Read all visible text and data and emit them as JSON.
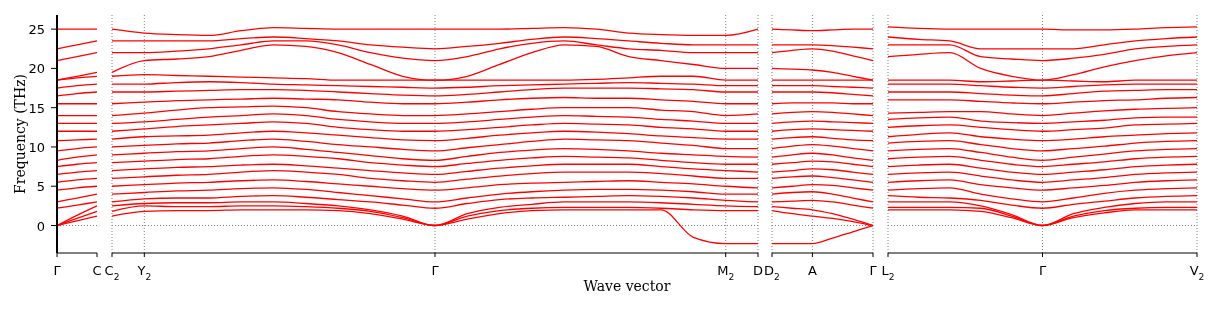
{
  "chart_data": [
    {
      "type": "line",
      "ylabel": "Frequency (THz)",
      "color": "#ff0000",
      "line_style": "solid",
      "categories": [
        "Γ",
        null,
        "C"
      ],
      "ylim": [
        -3.5,
        26.8
      ],
      "yticks": [
        0,
        5,
        10,
        15,
        20,
        25
      ],
      "ref_lines": [
        {
          "axis": "y",
          "value": 0,
          "color": "#808080",
          "line_style": "dotted"
        }
      ],
      "series": [
        {
          "values": [
            0,
            0.6,
            1.2
          ]
        },
        {
          "values": [
            0,
            0.9,
            1.8
          ]
        },
        {
          "values": [
            0,
            1.3,
            2.5
          ]
        },
        {
          "values": [
            2.2,
            2.6,
            3.0
          ]
        },
        {
          "values": [
            3.0,
            3.5,
            4.0
          ]
        },
        {
          "values": [
            4.5,
            4.8,
            5.0
          ]
        },
        {
          "values": [
            5.5,
            5.8,
            6.0
          ]
        },
        {
          "values": [
            6.5,
            6.8,
            7.0
          ]
        },
        {
          "values": [
            7.5,
            7.8,
            8.0
          ]
        },
        {
          "values": [
            8.3,
            8.7,
            9.0
          ]
        },
        {
          "values": [
            9.5,
            9.8,
            10.0
          ]
        },
        {
          "values": [
            10.8,
            10.9,
            11.0
          ]
        },
        {
          "values": [
            12,
            12,
            12
          ]
        },
        {
          "values": [
            13,
            13,
            13
          ]
        },
        {
          "values": [
            14,
            14,
            14
          ]
        },
        {
          "values": [
            15.5,
            15.5,
            15.5
          ]
        },
        {
          "values": [
            16.5,
            16.8,
            17.0
          ]
        },
        {
          "values": [
            17.5,
            17.8,
            18.0
          ]
        },
        {
          "values": [
            18.5,
            18.8,
            19.0
          ]
        },
        {
          "values": [
            18.5,
            19.0,
            19.5
          ]
        },
        {
          "values": [
            21.0,
            21.5,
            22.0
          ]
        },
        {
          "values": [
            22.5,
            23.0,
            23.5
          ]
        },
        {
          "values": [
            25,
            25,
            25
          ]
        }
      ]
    },
    {
      "type": "line",
      "xlabel": "Wave vector",
      "color": "#ff0000",
      "line_style": "solid",
      "grid": "x",
      "tick_labels": "x",
      "categories": [
        "C$_{2}$",
        "Y$_{2}$",
        null,
        null,
        null,
        null,
        null,
        null,
        null,
        null,
        "Γ",
        null,
        null,
        null,
        null,
        null,
        null,
        null,
        null,
        "M$_{2}$",
        "D"
      ],
      "ylim": [
        -3.5,
        26.8
      ],
      "yticks": [
        0,
        5,
        10,
        15,
        20,
        25
      ],
      "ref_lines": [
        {
          "axis": "y",
          "value": 0,
          "color": "#808080",
          "line_style": "dotted"
        }
      ],
      "series": [
        {
          "values": [
            1.2,
            1.8,
            1.9,
            1.9,
            2.0,
            2.0,
            2.0,
            1.9,
            1.5,
            0.8,
            0,
            0.8,
            1.5,
            1.9,
            2.0,
            2.0,
            2.0,
            2.0,
            -1.5,
            -2.3,
            -2.3
          ]
        },
        {
          "values": [
            1.8,
            2.5,
            2.4,
            2.4,
            2.5,
            2.5,
            2.4,
            2.2,
            1.8,
            1.0,
            0,
            1.2,
            1.9,
            2.2,
            2.3,
            2.3,
            2.3,
            2.2,
            2.0,
            1.9,
            1.9
          ]
        },
        {
          "values": [
            2.5,
            2.8,
            2.9,
            2.9,
            3.0,
            3.0,
            2.8,
            2.5,
            2.0,
            1.2,
            0,
            1.5,
            2.3,
            2.7,
            3.0,
            3.0,
            3.0,
            2.9,
            2.7,
            2.5,
            2.4
          ]
        },
        {
          "values": [
            3.0,
            3.4,
            3.5,
            3.5,
            3.7,
            3.8,
            3.6,
            3.3,
            3.0,
            2.6,
            2.2,
            2.8,
            3.3,
            3.5,
            3.6,
            3.7,
            3.8,
            3.7,
            3.5,
            3.2,
            3.0
          ]
        },
        {
          "values": [
            4.0,
            4.2,
            4.4,
            4.5,
            4.7,
            4.8,
            4.6,
            4.2,
            3.8,
            3.4,
            3.0,
            3.5,
            4.0,
            4.3,
            4.5,
            4.6,
            4.6,
            4.5,
            4.3,
            4.0,
            4.0
          ]
        },
        {
          "values": [
            5.0,
            5.2,
            5.4,
            5.5,
            5.7,
            5.8,
            5.6,
            5.3,
            5.0,
            4.7,
            4.5,
            4.8,
            5.2,
            5.4,
            5.5,
            5.6,
            5.7,
            5.5,
            5.3,
            5.0,
            4.8
          ]
        },
        {
          "values": [
            6.0,
            6.2,
            6.4,
            6.5,
            6.8,
            7.0,
            6.8,
            6.5,
            6.0,
            5.7,
            5.5,
            5.9,
            6.3,
            6.6,
            6.8,
            6.8,
            6.8,
            6.6,
            6.3,
            6.0,
            6.0
          ]
        },
        {
          "values": [
            7.0,
            7.2,
            7.4,
            7.5,
            7.7,
            7.8,
            7.6,
            7.3,
            7.0,
            6.7,
            6.5,
            6.9,
            7.3,
            7.6,
            7.8,
            7.8,
            7.8,
            7.5,
            7.2,
            7.0,
            6.8
          ]
        },
        {
          "values": [
            8.0,
            8.2,
            8.4,
            8.5,
            8.8,
            9.0,
            8.8,
            8.5,
            8.0,
            7.7,
            7.5,
            7.9,
            8.3,
            8.6,
            8.8,
            8.7,
            8.6,
            8.3,
            8.0,
            7.8,
            7.8
          ]
        },
        {
          "values": [
            9.0,
            9.2,
            9.4,
            9.5,
            9.8,
            10.0,
            9.7,
            9.3,
            8.9,
            8.5,
            8.3,
            8.8,
            9.3,
            9.6,
            9.8,
            9.7,
            9.5,
            9.2,
            9.0,
            8.8,
            8.7
          ]
        },
        {
          "values": [
            10.0,
            10.2,
            10.4,
            10.5,
            10.8,
            11.0,
            10.7,
            10.3,
            10.0,
            9.7,
            9.5,
            9.9,
            10.3,
            10.7,
            11.0,
            10.9,
            10.8,
            10.5,
            10.2,
            9.8,
            9.8
          ]
        },
        {
          "values": [
            11.0,
            11.3,
            11.4,
            11.5,
            11.8,
            12.0,
            11.8,
            11.5,
            11.2,
            10.9,
            10.8,
            11.1,
            11.5,
            11.8,
            12.0,
            11.9,
            11.7,
            11.4,
            11.2,
            11.0,
            11.0
          ]
        },
        {
          "values": [
            12.0,
            12.3,
            12.6,
            12.8,
            13.0,
            13.2,
            13.0,
            12.5,
            12.2,
            12.0,
            12.0,
            12.2,
            12.5,
            12.8,
            13.0,
            12.9,
            12.8,
            12.5,
            12.3,
            12.0,
            12.0
          ]
        },
        {
          "values": [
            13.0,
            13.2,
            13.5,
            13.8,
            14.0,
            14.2,
            14.0,
            13.5,
            13.2,
            13.0,
            13.0,
            13.2,
            13.5,
            13.8,
            14.0,
            13.9,
            13.8,
            13.5,
            13.3,
            13.0,
            13.0
          ]
        },
        {
          "values": [
            14.0,
            14.3,
            14.7,
            15.0,
            15.1,
            15.2,
            15.0,
            14.5,
            14.2,
            14.0,
            14.0,
            14.2,
            14.5,
            14.8,
            15.0,
            15.0,
            15.0,
            14.7,
            14.5,
            14.0,
            14.2
          ]
        },
        {
          "values": [
            15.5,
            15.7,
            15.9,
            16.0,
            16.1,
            16.2,
            16.1,
            16.0,
            15.7,
            15.5,
            15.5,
            15.7,
            16.0,
            16.2,
            16.3,
            16.2,
            16.2,
            16.0,
            15.8,
            15.5,
            15.5
          ]
        },
        {
          "values": [
            17.0,
            17.0,
            17.1,
            17.2,
            17.3,
            17.3,
            17.2,
            17.0,
            16.8,
            16.6,
            16.5,
            16.7,
            17.0,
            17.3,
            17.5,
            17.5,
            17.5,
            17.4,
            17.3,
            17.0,
            17.0
          ]
        },
        {
          "values": [
            18.0,
            18.0,
            18.2,
            18.3,
            18.2,
            18.0,
            17.9,
            17.8,
            17.7,
            17.6,
            17.5,
            17.6,
            17.8,
            17.9,
            18.0,
            18.1,
            18.2,
            18.1,
            18.0,
            17.8,
            17.8
          ]
        },
        {
          "values": [
            19.0,
            19.2,
            19.1,
            19.0,
            18.9,
            18.8,
            18.7,
            18.5,
            18.5,
            18.5,
            18.5,
            18.5,
            18.5,
            18.5,
            18.5,
            18.6,
            18.8,
            19.0,
            19.0,
            18.5,
            18.5
          ]
        },
        {
          "values": [
            19.5,
            21.0,
            21.2,
            21.5,
            22.3,
            23.0,
            22.8,
            22.0,
            20.5,
            19.0,
            18.5,
            19.0,
            20.5,
            22.0,
            23.0,
            22.8,
            21.5,
            21.0,
            20.5,
            20.0,
            20.0
          ]
        },
        {
          "values": [
            22.0,
            22.0,
            22.2,
            22.5,
            23.0,
            23.5,
            23.5,
            23.0,
            22.0,
            21.3,
            21.0,
            21.5,
            22.5,
            23.2,
            23.5,
            23.0,
            22.5,
            22.3,
            22.0,
            22.0,
            22.0
          ]
        },
        {
          "values": [
            23.5,
            23.5,
            23.5,
            23.5,
            23.8,
            24.0,
            23.8,
            23.5,
            23.0,
            22.7,
            22.5,
            22.8,
            23.2,
            23.7,
            24.0,
            23.8,
            23.5,
            23.2,
            23.0,
            23.0,
            23.0
          ]
        },
        {
          "values": [
            25.0,
            24.5,
            24.3,
            24.2,
            24.8,
            25.2,
            25.1,
            25.0,
            25.0,
            25.0,
            25.0,
            25.0,
            25.0,
            25.1,
            25.2,
            25.0,
            24.5,
            24.3,
            24.2,
            24.2,
            25.0
          ]
        }
      ]
    },
    {
      "type": "line",
      "color": "#ff0000",
      "line_style": "solid",
      "grid": "x",
      "tick_labels": "x",
      "categories": [
        "D$_{2}$",
        null,
        "A",
        null,
        null,
        "Γ"
      ],
      "ylim": [
        -3.5,
        26.8
      ],
      "yticks": [
        0,
        5,
        10,
        15,
        20,
        25
      ],
      "ref_lines": [
        {
          "axis": "y",
          "value": 0,
          "color": "#808080",
          "line_style": "dotted"
        }
      ],
      "series": [
        {
          "values": [
            -2.3,
            -2.3,
            -2.3,
            -1.6,
            -0.8,
            0
          ]
        },
        {
          "values": [
            1.9,
            1.5,
            1.2,
            0.9,
            0.5,
            0
          ]
        },
        {
          "values": [
            2.4,
            2.2,
            2.0,
            1.5,
            0.8,
            0
          ]
        },
        {
          "values": [
            3.0,
            3.1,
            3.2,
            3.0,
            2.6,
            2.2
          ]
        },
        {
          "values": [
            4.0,
            4.2,
            4.3,
            4.0,
            3.5,
            3.0
          ]
        },
        {
          "values": [
            4.8,
            5.0,
            5.2,
            5.1,
            4.8,
            4.5
          ]
        },
        {
          "values": [
            6.0,
            6.2,
            6.3,
            6.1,
            5.8,
            5.5
          ]
        },
        {
          "values": [
            6.8,
            7.0,
            7.2,
            7.1,
            6.8,
            6.5
          ]
        },
        {
          "values": [
            7.8,
            8.0,
            8.2,
            8.1,
            7.8,
            7.5
          ]
        },
        {
          "values": [
            8.7,
            9.0,
            9.2,
            9.0,
            8.6,
            8.3
          ]
        },
        {
          "values": [
            9.8,
            10.1,
            10.3,
            10.1,
            9.8,
            9.5
          ]
        },
        {
          "values": [
            11.0,
            11.2,
            11.3,
            11.1,
            10.9,
            10.8
          ]
        },
        {
          "values": [
            12.0,
            12.2,
            12.3,
            12.2,
            12.1,
            12.0
          ]
        },
        {
          "values": [
            13.0,
            13.2,
            13.3,
            13.2,
            13.1,
            13.0
          ]
        },
        {
          "values": [
            14.2,
            14.4,
            14.5,
            14.4,
            14.2,
            14.0
          ]
        },
        {
          "values": [
            15.5,
            15.6,
            15.6,
            15.6,
            15.5,
            15.5
          ]
        },
        {
          "values": [
            17.0,
            17.0,
            17.0,
            16.9,
            16.7,
            16.5
          ]
        },
        {
          "values": [
            17.8,
            17.8,
            17.8,
            17.7,
            17.6,
            17.5
          ]
        },
        {
          "values": [
            18.5,
            18.5,
            18.5,
            18.5,
            18.5,
            18.5
          ]
        },
        {
          "values": [
            20.0,
            19.9,
            19.8,
            19.5,
            19.0,
            18.5
          ]
        },
        {
          "values": [
            22.0,
            22.3,
            22.5,
            22.2,
            21.6,
            21.0
          ]
        },
        {
          "values": [
            23.0,
            23.0,
            23.0,
            22.9,
            22.7,
            22.5
          ]
        },
        {
          "values": [
            25.0,
            24.9,
            24.8,
            24.9,
            25.0,
            25.0
          ]
        }
      ]
    },
    {
      "type": "line",
      "color": "#ff0000",
      "line_style": "solid",
      "grid": "x",
      "tick_labels": "x",
      "categories": [
        "L$_{2}$",
        null,
        null,
        null,
        null,
        "Γ",
        null,
        null,
        null,
        null,
        "V$_{2}$"
      ],
      "ylim": [
        -3.5,
        26.8
      ],
      "yticks": [
        0,
        5,
        10,
        15,
        20,
        25
      ],
      "ref_lines": [
        {
          "axis": "y",
          "value": 0,
          "color": "#808080",
          "line_style": "dotted"
        }
      ],
      "series": [
        {
          "values": [
            2.0,
            2.0,
            2.0,
            1.8,
            1.0,
            0,
            1.0,
            1.6,
            2.0,
            2.0,
            2.0
          ]
        },
        {
          "values": [
            2.3,
            2.3,
            2.3,
            2.2,
            1.2,
            0,
            1.2,
            1.9,
            2.2,
            2.3,
            2.3
          ]
        },
        {
          "values": [
            3.0,
            3.0,
            3.0,
            2.5,
            1.4,
            0,
            1.5,
            2.3,
            2.8,
            3.0,
            3.0
          ]
        },
        {
          "values": [
            3.8,
            3.6,
            3.5,
            3.2,
            2.6,
            2.2,
            2.7,
            3.1,
            3.5,
            3.7,
            3.8
          ]
        },
        {
          "values": [
            4.5,
            4.7,
            4.8,
            4.0,
            3.4,
            3.0,
            3.5,
            4.1,
            4.5,
            4.7,
            4.8
          ]
        },
        {
          "values": [
            5.5,
            5.7,
            5.8,
            5.2,
            4.8,
            4.5,
            4.8,
            5.1,
            5.5,
            5.7,
            5.8
          ]
        },
        {
          "values": [
            6.5,
            6.7,
            6.8,
            6.3,
            5.8,
            5.5,
            5.8,
            6.1,
            6.5,
            6.7,
            6.8
          ]
        },
        {
          "values": [
            7.5,
            7.7,
            7.8,
            7.3,
            6.8,
            6.5,
            6.8,
            7.1,
            7.5,
            7.7,
            7.8
          ]
        },
        {
          "values": [
            8.5,
            8.7,
            8.8,
            8.3,
            7.8,
            7.5,
            7.8,
            8.1,
            8.5,
            8.7,
            8.8
          ]
        },
        {
          "values": [
            9.5,
            9.7,
            9.8,
            9.3,
            8.7,
            8.3,
            8.7,
            9.1,
            9.5,
            9.7,
            9.8
          ]
        },
        {
          "values": [
            10.5,
            10.7,
            10.8,
            10.3,
            9.8,
            9.5,
            9.8,
            10.1,
            10.5,
            10.7,
            10.8
          ]
        },
        {
          "values": [
            11.3,
            11.6,
            11.8,
            11.3,
            11.0,
            10.8,
            11.0,
            11.3,
            11.5,
            11.7,
            11.8
          ]
        },
        {
          "values": [
            12.5,
            12.7,
            12.8,
            12.5,
            12.2,
            12.0,
            12.2,
            12.4,
            12.8,
            12.9,
            13.0
          ]
        },
        {
          "values": [
            13.5,
            13.7,
            13.8,
            13.3,
            13.1,
            13.0,
            13.2,
            13.4,
            13.7,
            13.8,
            13.8
          ]
        },
        {
          "values": [
            14.3,
            14.4,
            14.5,
            14.5,
            14.2,
            14.0,
            14.3,
            14.6,
            14.8,
            14.9,
            15.0
          ]
        },
        {
          "values": [
            16.0,
            16.0,
            16.0,
            15.8,
            15.6,
            15.5,
            15.7,
            15.9,
            16.0,
            16.2,
            16.3
          ]
        },
        {
          "values": [
            17.0,
            17.0,
            17.0,
            16.8,
            16.6,
            16.5,
            16.8,
            17.1,
            17.2,
            17.3,
            17.3
          ]
        },
        {
          "values": [
            18.0,
            18.0,
            18.0,
            17.8,
            17.6,
            17.5,
            17.7,
            17.9,
            18.0,
            18.0,
            18.0
          ]
        },
        {
          "values": [
            18.5,
            18.5,
            18.5,
            18.3,
            18.4,
            18.5,
            18.4,
            18.3,
            18.5,
            18.5,
            18.5
          ]
        },
        {
          "values": [
            21.5,
            21.8,
            22.0,
            20.0,
            19.0,
            18.5,
            19.2,
            20.2,
            21.0,
            21.6,
            22.0
          ]
        },
        {
          "values": [
            23.0,
            23.0,
            23.0,
            21.5,
            21.2,
            21.0,
            21.3,
            21.8,
            22.5,
            22.8,
            23.0
          ]
        },
        {
          "values": [
            24.0,
            23.7,
            23.5,
            22.5,
            22.5,
            22.5,
            22.5,
            23.0,
            23.5,
            23.8,
            24.0
          ]
        },
        {
          "values": [
            25.3,
            25.1,
            25.0,
            25.0,
            25.0,
            25.0,
            24.9,
            24.9,
            25.0,
            25.2,
            25.3
          ]
        }
      ]
    }
  ]
}
